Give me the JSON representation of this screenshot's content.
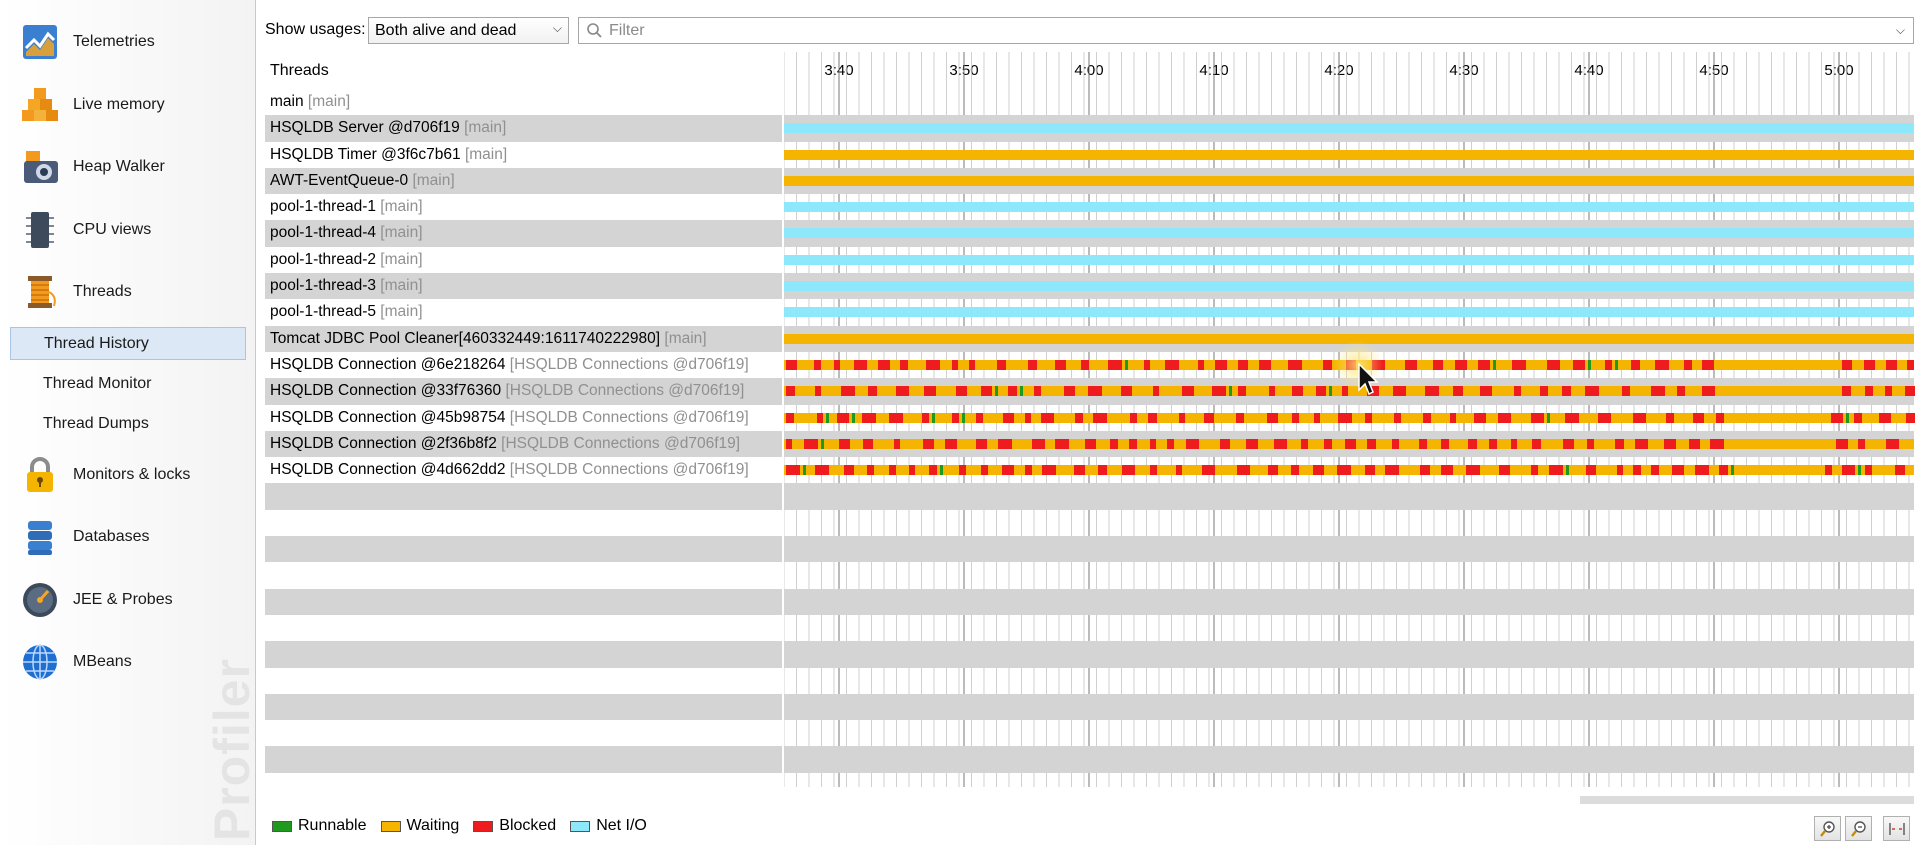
{
  "sidebar": {
    "items": [
      {
        "label": "Telemetries",
        "icon": "telemetries-icon"
      },
      {
        "label": "Live memory",
        "icon": "live-memory-icon"
      },
      {
        "label": "Heap Walker",
        "icon": "heap-walker-icon"
      },
      {
        "label": "CPU views",
        "icon": "cpu-views-icon"
      },
      {
        "label": "Threads",
        "icon": "threads-icon"
      },
      {
        "label": "Monitors & locks",
        "icon": "lock-icon"
      },
      {
        "label": "Databases",
        "icon": "database-icon"
      },
      {
        "label": "JEE & Probes",
        "icon": "gauge-icon"
      },
      {
        "label": "MBeans",
        "icon": "globe-icon"
      }
    ],
    "sub_items": [
      {
        "label": "Thread History",
        "selected": true
      },
      {
        "label": "Thread Monitor",
        "selected": false
      },
      {
        "label": "Thread Dumps",
        "selected": false
      }
    ],
    "brand": "JProfiler"
  },
  "toolbar": {
    "show_usages_label": "Show usages:",
    "show_usages_value": "Both alive and dead",
    "filter_placeholder": "Filter"
  },
  "table": {
    "header": "Threads",
    "ticks": [
      "3:40",
      "3:50",
      "4:00",
      "4:10",
      "4:20",
      "4:30",
      "4:40",
      "4:50",
      "5:00"
    ],
    "rows": [
      {
        "name": "main",
        "group": "[main]",
        "state": "none"
      },
      {
        "name": "HSQLDB Server @d706f19",
        "group": "[main]",
        "state": "netio"
      },
      {
        "name": "HSQLDB Timer @3f6c7b61",
        "group": "[main]",
        "state": "waiting"
      },
      {
        "name": "AWT-EventQueue-0",
        "group": "[main]",
        "state": "waiting"
      },
      {
        "name": "pool-1-thread-1",
        "group": "[main]",
        "state": "netio"
      },
      {
        "name": "pool-1-thread-4",
        "group": "[main]",
        "state": "netio"
      },
      {
        "name": "pool-1-thread-2",
        "group": "[main]",
        "state": "netio"
      },
      {
        "name": "pool-1-thread-3",
        "group": "[main]",
        "state": "netio"
      },
      {
        "name": "pool-1-thread-5",
        "group": "[main]",
        "state": "netio"
      },
      {
        "name": "Tomcat JDBC Pool Cleaner[460332449:1611740222980]",
        "group": "[main]",
        "state": "waiting"
      },
      {
        "name": "HSQLDB Connection @6e218264",
        "group": "[HSQLDB Connections @d706f19]",
        "state": "mixed"
      },
      {
        "name": "HSQLDB Connection @33f76360",
        "group": "[HSQLDB Connections @d706f19]",
        "state": "mixed"
      },
      {
        "name": "HSQLDB Connection @45b98754",
        "group": "[HSQLDB Connections @d706f19]",
        "state": "mixed"
      },
      {
        "name": "HSQLDB Connection @2f36b8f2",
        "group": "[HSQLDB Connections @d706f19]",
        "state": "mixed"
      },
      {
        "name": "HSQLDB Connection @4d662dd2",
        "group": "[HSQLDB Connections @d706f19]",
        "state": "mixed"
      },
      {
        "name": "",
        "group": "",
        "state": "none"
      },
      {
        "name": "",
        "group": "",
        "state": "none"
      },
      {
        "name": "",
        "group": "",
        "state": "none"
      },
      {
        "name": "",
        "group": "",
        "state": "none"
      },
      {
        "name": "",
        "group": "",
        "state": "none"
      },
      {
        "name": "",
        "group": "",
        "state": "none"
      },
      {
        "name": "",
        "group": "",
        "state": "none"
      },
      {
        "name": "",
        "group": "",
        "state": "none"
      },
      {
        "name": "",
        "group": "",
        "state": "none"
      },
      {
        "name": "",
        "group": "",
        "state": "none"
      },
      {
        "name": "",
        "group": "",
        "state": "none"
      },
      {
        "name": "",
        "group": "",
        "state": "none"
      }
    ]
  },
  "legend": [
    {
      "label": "Runnable",
      "color": "#1f9a1f"
    },
    {
      "label": "Waiting",
      "color": "#f5b400"
    },
    {
      "label": "Blocked",
      "color": "#ee1c1c"
    },
    {
      "label": "Net I/O",
      "color": "#8ee8fb"
    }
  ],
  "colors": {
    "runnable": "#1f9a1f",
    "waiting": "#f5b400",
    "blocked": "#ee1c1c",
    "netio": "#8ee8fb",
    "selection": "#dce8f5"
  }
}
